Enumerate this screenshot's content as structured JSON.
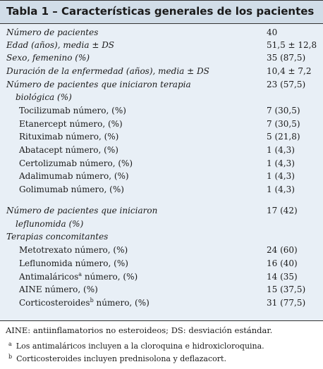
{
  "title": "Tabla 1 – Características generales de los pacientes",
  "rows": [
    {
      "label": "Número de pacientes",
      "value": "40"
    },
    {
      "label": "Edad (años), media ± DS",
      "value": "51,5 ± 12,8"
    },
    {
      "label": "Sexo, femenino (%)",
      "value": "35 (87,5)"
    },
    {
      "label": "Duración de la enfermedad (años), media ± DS",
      "value": "10,4 ± 7,2"
    },
    {
      "label": "Número de pacientes que iniciaron terapia",
      "label2": "biológica (%)",
      "value": "23 (57,5)"
    },
    {
      "label": "Tocilizumab número, (%)",
      "value": "7 (30,5)"
    },
    {
      "label": "Etanercept número, (%)",
      "value": "7 (30,5)"
    },
    {
      "label": "Rituximab número, (%)",
      "value": "5 (21,8)"
    },
    {
      "label": "Abatacept número, (%)",
      "value": "1 (4,3)"
    },
    {
      "label": "Certolizumab número, (%)",
      "value": "1 (4,3)"
    },
    {
      "label": "Adalimumab número, (%)",
      "value": "1 (4,3)"
    },
    {
      "label": "Golimumab número, (%)",
      "value": "1 (4,3)"
    },
    {
      "label": "Número de pacientes que iniciaron",
      "label2": "leflunomida (%)",
      "value": "17 (42)"
    },
    {
      "label": "Terapias concomitantes"
    },
    {
      "label": "Metotrexato número, (%)",
      "value": "24 (60)"
    },
    {
      "label": "Leflunomida número, (%)",
      "value": "16 (40)"
    },
    {
      "label": "Antimaláricos",
      "sup": "a",
      "label_rest": " número, (%)",
      "value": "14 (35)"
    },
    {
      "label": "AINE número, (%)",
      "value": "15 (37,5)"
    },
    {
      "label": "Corticosteroides",
      "sup": "b",
      "label_rest": " número, (%)",
      "value": "31 (77,5)"
    }
  ],
  "notes": {
    "main": "AINE: antiinflamatorios no esteroideos; DS: desviación estándar.",
    "a_mark": "a",
    "a_text": "Los antimaláricos incluyen a la cloroquina e hidroxicloroquina.",
    "b_mark": "b",
    "b_text": "Corticosteroides incluyen prednisolona y deflazacort."
  }
}
